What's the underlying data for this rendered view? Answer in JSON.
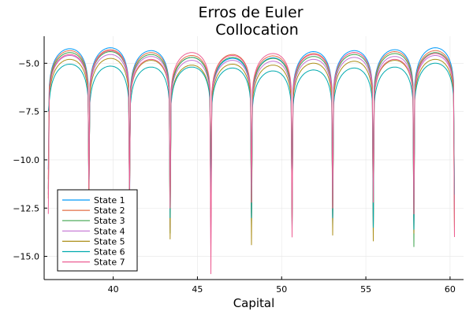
{
  "chart_data": {
    "type": "line",
    "title": "Erros de Euler",
    "subtitle": "Collocation",
    "xlabel": "Capital",
    "ylabel": "",
    "xlim": [
      35.9,
      60.8
    ],
    "ylim": [
      -16.2,
      -3.6
    ],
    "xticks": [
      40,
      45,
      50,
      55,
      60
    ],
    "yticks": [
      -5.0,
      -7.5,
      -10.0,
      -12.5,
      -15.0
    ],
    "xtick_labels": [
      "40",
      "45",
      "50",
      "55",
      "60"
    ],
    "ytick_labels": [
      "−5.0",
      "−7.5",
      "−10.0",
      "−12.5",
      "−15.0"
    ],
    "grid": true,
    "legend_position": "bottom-left",
    "nodes": [
      36.15,
      38.56,
      40.97,
      43.38,
      45.8,
      48.21,
      50.62,
      53.03,
      55.44,
      57.85,
      60.26
    ],
    "series": [
      {
        "name": "State 1",
        "color": "#009AFA",
        "peaks": [
          -4.25,
          -4.2,
          -4.35,
          -4.7,
          -4.75,
          -4.72,
          -4.4,
          -4.35,
          -4.3,
          -4.2
        ],
        "node_values": [
          -10.5,
          -12.5,
          -12.8,
          -13.5,
          -13.5,
          -13.5,
          -13.6,
          -13.5,
          -13.5,
          -13.5,
          -12.5
        ]
      },
      {
        "name": "State 2",
        "color": "#E36F47",
        "peaks": [
          -4.35,
          -4.3,
          -4.45,
          -4.6,
          -4.55,
          -4.62,
          -4.5,
          -4.45,
          -4.4,
          -4.35
        ],
        "node_values": [
          -11.0,
          -12.2,
          -12.4,
          -13.0,
          -13.0,
          -13.0,
          -13.2,
          -13.1,
          -13.1,
          -13.0,
          -14.0
        ]
      },
      {
        "name": "State 3",
        "color": "#3EA44E",
        "peaks": [
          -4.45,
          -4.4,
          -4.55,
          -4.7,
          -4.7,
          -4.75,
          -4.65,
          -4.55,
          -4.5,
          -4.45
        ],
        "node_values": [
          -11.5,
          -12.0,
          -12.0,
          -13.8,
          -13.2,
          -13.2,
          -13.5,
          -13.2,
          -13.8,
          -14.5,
          -12.0
        ]
      },
      {
        "name": "State 4",
        "color": "#C371D2",
        "peaks": [
          -4.6,
          -4.55,
          -4.65,
          -4.85,
          -4.85,
          -4.9,
          -4.8,
          -4.7,
          -4.65,
          -4.6
        ],
        "node_values": [
          -11.8,
          -12.0,
          -12.2,
          -13.6,
          -14.5,
          -13.0,
          -13.3,
          -13.3,
          -13.5,
          -13.7,
          -12.8
        ]
      },
      {
        "name": "State 5",
        "color": "#AC8E18",
        "peaks": [
          -4.8,
          -4.75,
          -4.85,
          -5.1,
          -5.05,
          -5.1,
          -5.0,
          -4.9,
          -4.85,
          -4.8
        ],
        "node_values": [
          -12.0,
          -11.8,
          -12.0,
          -14.1,
          -13.5,
          -14.4,
          -13.4,
          -13.9,
          -14.2,
          -13.8,
          -13.5
        ]
      },
      {
        "name": "State 6",
        "color": "#00AAAE",
        "peaks": [
          -5.05,
          -5.15,
          -5.2,
          -5.2,
          -5.25,
          -5.4,
          -5.35,
          -5.25,
          -5.2,
          -5.0
        ],
        "node_values": [
          -7.5,
          -11.0,
          -11.5,
          -13.0,
          -13.0,
          -13.0,
          -13.0,
          -13.0,
          -13.5,
          -13.6,
          -11.8
        ]
      },
      {
        "name": "State 7",
        "color": "#ED5E93",
        "peaks": [
          -4.55,
          -4.35,
          -4.8,
          -4.45,
          -4.6,
          -4.5,
          -4.55,
          -4.45,
          -4.8,
          -4.5
        ],
        "node_values": [
          -12.8,
          -11.5,
          -11.8,
          -12.5,
          -15.9,
          -12.2,
          -14.0,
          -12.5,
          -12.2,
          -12.8,
          -14.0
        ]
      }
    ]
  }
}
